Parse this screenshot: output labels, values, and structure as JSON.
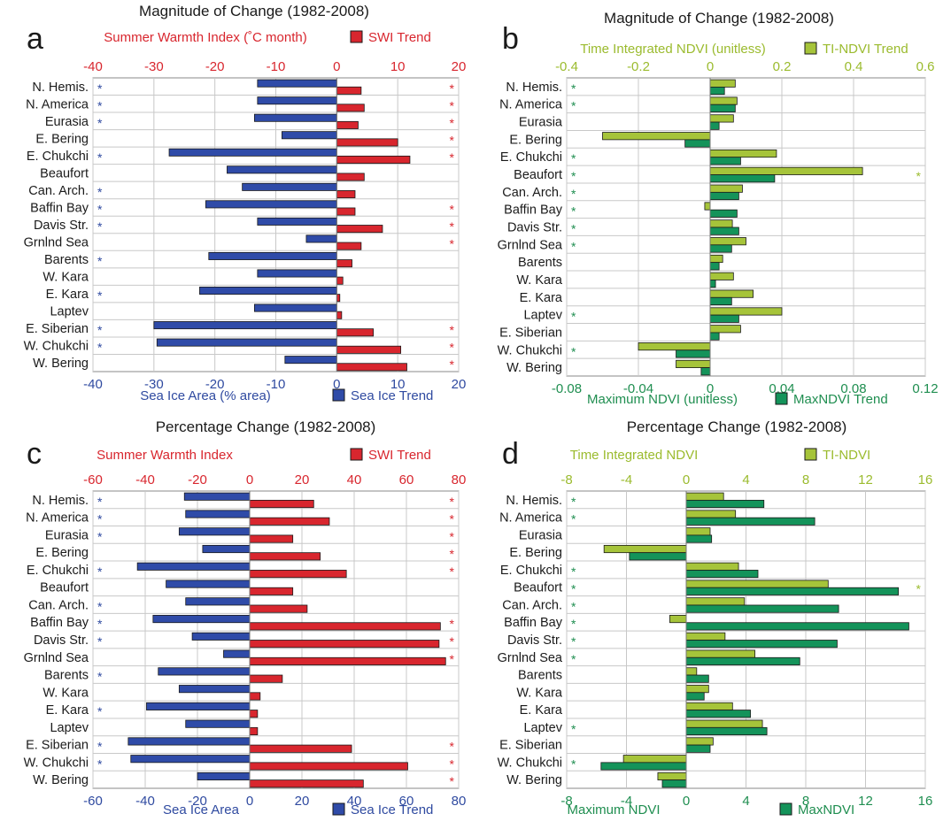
{
  "colors": {
    "ice_blue": "#2f4aa0",
    "ice_fill": "#2f4ba8",
    "swi_red": "#d8262e",
    "ndvi_light": "#a6c43a",
    "ndvi_light_text": "#9bbb2e",
    "ndvi_dark": "#14935a",
    "ndvi_dark_text": "#1f8e50",
    "grid": "#c8c8c8",
    "text": "#1a1a1a"
  },
  "charts": [
    {
      "id": "a",
      "panel_letter": "a",
      "title": "Magnitude of Change (1982-2008)",
      "categories": [
        "N. Hemis.",
        "N. America",
        "Eurasia",
        "E. Bering",
        "E. Chukchi",
        "Beaufort",
        "Can. Arch.",
        "Baffin Bay",
        "Davis Str.",
        "Grnlnd Sea",
        "Barents",
        "W. Kara",
        "E. Kara",
        "Laptev",
        "E. Siberian",
        "W. Chukchi",
        "W. Bering"
      ],
      "top_axis": {
        "label": "Summer Warmth Index (˚C month)",
        "ticks": [
          -40,
          -30,
          -20,
          -10,
          0,
          10,
          20
        ],
        "range": [
          -40,
          20
        ],
        "color": "swi_red"
      },
      "bottom_axis": {
        "label": "Sea Ice Area (% area)",
        "ticks": [
          -40,
          -30,
          -20,
          -10,
          0,
          10,
          20
        ],
        "range": [
          -40,
          20
        ],
        "color": "ice_blue"
      },
      "legend_top": {
        "label": "SWI Trend",
        "swatch": "swi_red",
        "text_color": "swi_red"
      },
      "legend_bottom": {
        "label": "Sea Ice Trend",
        "swatch": "ice_fill",
        "text_color": "ice_blue"
      },
      "series": [
        {
          "name": "Sea Ice Trend",
          "axis": "bottom",
          "slot": "upper",
          "color": "ice_fill",
          "values": [
            -13,
            -13,
            -13.5,
            -9,
            -27.5,
            -18,
            -15.5,
            -21.5,
            -13,
            -5,
            -21,
            -13,
            -22.5,
            -13.5,
            -30,
            -29.5,
            -8.5
          ]
        },
        {
          "name": "SWI Trend",
          "axis": "top",
          "slot": "lower",
          "color": "swi_red",
          "values": [
            4,
            4.5,
            3.5,
            10,
            12,
            4.5,
            3,
            3,
            7.5,
            4,
            2.5,
            1,
            0.5,
            0.8,
            6,
            10.5,
            11.5
          ]
        }
      ],
      "stars_left": [
        true,
        true,
        true,
        false,
        true,
        false,
        true,
        true,
        true,
        false,
        true,
        false,
        true,
        false,
        true,
        true,
        false
      ],
      "stars_left_color": "ice_blue",
      "stars_right": [
        true,
        true,
        true,
        true,
        true,
        false,
        false,
        true,
        true,
        true,
        false,
        false,
        false,
        false,
        true,
        true,
        true
      ],
      "stars_right_color": "swi_red",
      "star": "*"
    },
    {
      "id": "b",
      "panel_letter": "b",
      "title": "Magnitude of Change (1982-2008)",
      "categories": [
        "N. Hemis.",
        "N. America",
        "Eurasia",
        "E. Bering",
        "E. Chukchi",
        "Beaufort",
        "Can. Arch.",
        "Baffin Bay",
        "Davis Str.",
        "Grnlnd Sea",
        "Barents",
        "W. Kara",
        "E. Kara",
        "Laptev",
        "E. Siberian",
        "W. Chukchi",
        "W. Bering"
      ],
      "top_axis": {
        "label": "Time Integrated NDVI (unitless)",
        "ticks": [
          -0.4,
          -0.2,
          0,
          0.2,
          0.4,
          0.6
        ],
        "tick_labels": [
          "-0.4",
          "-0.2",
          "0",
          "0.2",
          "0.4",
          "0.6"
        ],
        "range": [
          -0.4,
          0.6
        ],
        "color": "ndvi_light_text"
      },
      "bottom_axis": {
        "label": "Maximum NDVI (unitless)",
        "ticks": [
          -0.08,
          -0.04,
          0,
          0.04,
          0.08,
          0.12
        ],
        "tick_labels": [
          "-0.08",
          "-0.04",
          "0",
          "0.04",
          "0.08",
          "0.12"
        ],
        "range": [
          -0.08,
          0.12
        ],
        "color": "ndvi_dark_text"
      },
      "legend_top": {
        "label": "TI-NDVI Trend",
        "swatch": "ndvi_light",
        "text_color": "ndvi_light_text"
      },
      "legend_bottom": {
        "label": "MaxNDVI Trend",
        "swatch": "ndvi_dark",
        "text_color": "ndvi_dark_text"
      },
      "series": [
        {
          "name": "TI-NDVI Trend",
          "axis": "top",
          "slot": "upper",
          "color": "ndvi_light",
          "values": [
            0.07,
            0.075,
            0.065,
            -0.3,
            0.185,
            0.425,
            0.09,
            -0.015,
            0.062,
            0.1,
            0.035,
            0.065,
            0.12,
            0.2,
            0.085,
            -0.2,
            -0.095
          ]
        },
        {
          "name": "MaxNDVI Trend",
          "axis": "bottom",
          "slot": "lower",
          "color": "ndvi_dark",
          "values": [
            0.008,
            0.014,
            0.005,
            -0.014,
            0.017,
            0.036,
            0.016,
            0.015,
            0.016,
            0.012,
            0.005,
            0.003,
            0.012,
            0.016,
            0.005,
            -0.019,
            -0.005
          ]
        }
      ],
      "stars_left": [
        true,
        true,
        false,
        false,
        true,
        true,
        true,
        true,
        true,
        true,
        false,
        false,
        false,
        true,
        false,
        true,
        false
      ],
      "stars_left_color": "ndvi_dark_text",
      "stars_right": [
        false,
        false,
        false,
        false,
        false,
        true,
        false,
        false,
        false,
        false,
        false,
        false,
        false,
        false,
        false,
        false,
        false
      ],
      "stars_right_color": "ndvi_light_text",
      "star": "*"
    },
    {
      "id": "c",
      "panel_letter": "c",
      "title": "Percentage Change (1982-2008)",
      "categories": [
        "N. Hemis.",
        "N. America",
        "Eurasia",
        "E. Bering",
        "E. Chukchi",
        "Beaufort",
        "Can. Arch.",
        "Baffin Bay",
        "Davis Str.",
        "Grnlnd Sea",
        "Barents",
        "W. Kara",
        "E. Kara",
        "Laptev",
        "E. Siberian",
        "W. Chukchi",
        "W. Bering"
      ],
      "top_axis": {
        "label": "Summer Warmth Index",
        "ticks": [
          -60,
          -40,
          -20,
          0,
          20,
          40,
          60,
          80
        ],
        "range": [
          -60,
          80
        ],
        "color": "swi_red"
      },
      "bottom_axis": {
        "label": "Sea Ice Area",
        "ticks": [
          -60,
          -40,
          -20,
          0,
          20,
          40,
          60,
          80
        ],
        "range": [
          -60,
          80
        ],
        "color": "ice_blue"
      },
      "legend_top": {
        "label": "SWI Trend",
        "swatch": "swi_red",
        "text_color": "swi_red"
      },
      "legend_bottom": {
        "label": "Sea Ice Trend",
        "swatch": "ice_fill",
        "text_color": "ice_blue"
      },
      "series": [
        {
          "name": "Sea Ice Trend",
          "axis": "bottom",
          "slot": "upper",
          "color": "ice_fill",
          "values": [
            -25,
            -24.5,
            -27,
            -18,
            -43,
            -32,
            -24.5,
            -37,
            -22,
            -10,
            -35,
            -27,
            -39.5,
            -24.5,
            -46.5,
            -45.5,
            -20
          ]
        },
        {
          "name": "SWI Trend",
          "axis": "top",
          "slot": "lower",
          "color": "swi_red",
          "values": [
            24.5,
            30.5,
            16.5,
            27,
            37,
            16.5,
            22,
            73,
            72.5,
            75,
            12.5,
            4,
            3,
            3,
            39,
            60.5,
            43.5
          ]
        }
      ],
      "stars_left": [
        true,
        true,
        true,
        false,
        true,
        false,
        true,
        true,
        true,
        false,
        true,
        false,
        true,
        false,
        true,
        true,
        false
      ],
      "stars_left_color": "ice_blue",
      "stars_right": [
        true,
        true,
        true,
        true,
        true,
        false,
        false,
        true,
        true,
        true,
        false,
        false,
        false,
        false,
        true,
        true,
        true
      ],
      "stars_right_color": "swi_red",
      "star": "*"
    },
    {
      "id": "d",
      "panel_letter": "d",
      "title": "Percentage Change (1982-2008)",
      "categories": [
        "N. Hemis.",
        "N. America",
        "Eurasia",
        "E. Bering",
        "E. Chukchi",
        "Beaufort",
        "Can. Arch.",
        "Baffin Bay",
        "Davis Str.",
        "Grnlnd Sea",
        "Barents",
        "W. Kara",
        "E. Kara",
        "Laptev",
        "E. Siberian",
        "W. Chukchi",
        "W. Bering"
      ],
      "top_axis": {
        "label": "Time Integrated NDVI",
        "ticks": [
          -8,
          -4,
          0,
          4,
          8,
          12,
          16
        ],
        "range": [
          -8,
          16
        ],
        "color": "ndvi_light_text"
      },
      "bottom_axis": {
        "label": "Maximum NDVI",
        "ticks": [
          -8,
          -4,
          0,
          4,
          8,
          12,
          16
        ],
        "range": [
          -8,
          16
        ],
        "color": "ndvi_dark_text"
      },
      "legend_top": {
        "label": "TI-NDVI",
        "swatch": "ndvi_light",
        "text_color": "ndvi_light_text"
      },
      "legend_bottom": {
        "label": "MaxNDVI",
        "swatch": "ndvi_dark",
        "text_color": "ndvi_dark_text"
      },
      "series": [
        {
          "name": "TI-NDVI",
          "axis": "top",
          "slot": "upper",
          "color": "ndvi_light",
          "values": [
            2.5,
            3.3,
            1.6,
            -5.5,
            3.5,
            9.5,
            3.9,
            -1.1,
            2.6,
            4.6,
            0.7,
            1.5,
            3.1,
            5.1,
            1.8,
            -4.2,
            -1.9
          ]
        },
        {
          "name": "MaxNDVI",
          "axis": "bottom",
          "slot": "lower",
          "color": "ndvi_dark",
          "values": [
            5.2,
            8.6,
            1.7,
            -3.8,
            4.8,
            14.2,
            10.2,
            14.9,
            10.1,
            7.6,
            1.5,
            1.2,
            4.3,
            5.4,
            1.6,
            -5.7,
            -1.6
          ]
        }
      ],
      "stars_left": [
        true,
        true,
        false,
        false,
        true,
        true,
        true,
        true,
        true,
        true,
        false,
        false,
        false,
        true,
        false,
        true,
        false
      ],
      "stars_left_color": "ndvi_dark_text",
      "stars_right": [
        false,
        false,
        false,
        false,
        false,
        true,
        false,
        false,
        false,
        false,
        false,
        false,
        false,
        false,
        false,
        false,
        false
      ],
      "stars_right_color": "ndvi_light_text",
      "star": "*"
    }
  ],
  "chart_data": [
    {
      "type": "bar",
      "title": "Magnitude of Change (1982-2008)",
      "panel": "a",
      "categories": [
        "N. Hemis.",
        "N. America",
        "Eurasia",
        "E. Bering",
        "E. Chukchi",
        "Beaufort",
        "Can. Arch.",
        "Baffin Bay",
        "Davis Str.",
        "Grnlnd Sea",
        "Barents",
        "W. Kara",
        "E. Kara",
        "Laptev",
        "E. Siberian",
        "W. Chukchi",
        "W. Bering"
      ],
      "series": [
        {
          "name": "Sea Ice Trend",
          "values": [
            -13,
            -13,
            -13.5,
            -9,
            -27.5,
            -18,
            -15.5,
            -21.5,
            -13,
            -5,
            -21,
            -13,
            -22.5,
            -13.5,
            -30,
            -29.5,
            -8.5
          ]
        },
        {
          "name": "SWI Trend",
          "values": [
            4,
            4.5,
            3.5,
            10,
            12,
            4.5,
            3,
            3,
            7.5,
            4,
            2.5,
            1,
            0.5,
            0.8,
            6,
            10.5,
            11.5
          ]
        }
      ],
      "xlabel": "Sea Ice Area (% area)",
      "x2label": "Summer Warmth Index (˚C month)",
      "xlim": [
        -40,
        20
      ]
    },
    {
      "type": "bar",
      "title": "Magnitude of Change (1982-2008)",
      "panel": "b",
      "categories": [
        "N. Hemis.",
        "N. America",
        "Eurasia",
        "E. Bering",
        "E. Chukchi",
        "Beaufort",
        "Can. Arch.",
        "Baffin Bay",
        "Davis Str.",
        "Grnlnd Sea",
        "Barents",
        "W. Kara",
        "E. Kara",
        "Laptev",
        "E. Siberian",
        "W. Chukchi",
        "W. Bering"
      ],
      "series": [
        {
          "name": "TI-NDVI Trend",
          "values": [
            0.07,
            0.075,
            0.065,
            -0.3,
            0.185,
            0.425,
            0.09,
            -0.015,
            0.062,
            0.1,
            0.035,
            0.065,
            0.12,
            0.2,
            0.085,
            -0.2,
            -0.095
          ]
        },
        {
          "name": "MaxNDVI Trend",
          "values": [
            0.008,
            0.014,
            0.005,
            -0.014,
            0.017,
            0.036,
            0.016,
            0.015,
            0.016,
            0.012,
            0.005,
            0.003,
            0.012,
            0.016,
            0.005,
            -0.019,
            -0.005
          ]
        }
      ],
      "xlabel": "Maximum NDVI (unitless)",
      "x2label": "Time Integrated NDVI (unitless)",
      "xlim": [
        -0.08,
        0.12
      ],
      "x2lim": [
        -0.4,
        0.6
      ]
    },
    {
      "type": "bar",
      "title": "Percentage Change (1982-2008)",
      "panel": "c",
      "categories": [
        "N. Hemis.",
        "N. America",
        "Eurasia",
        "E. Bering",
        "E. Chukchi",
        "Beaufort",
        "Can. Arch.",
        "Baffin Bay",
        "Davis Str.",
        "Grnlnd Sea",
        "Barents",
        "W. Kara",
        "E. Kara",
        "Laptev",
        "E. Siberian",
        "W. Chukchi",
        "W. Bering"
      ],
      "series": [
        {
          "name": "Sea Ice Trend",
          "values": [
            -25,
            -24.5,
            -27,
            -18,
            -43,
            -32,
            -24.5,
            -37,
            -22,
            -10,
            -35,
            -27,
            -39.5,
            -24.5,
            -46.5,
            -45.5,
            -20
          ]
        },
        {
          "name": "SWI Trend",
          "values": [
            24.5,
            30.5,
            16.5,
            27,
            37,
            16.5,
            22,
            73,
            72.5,
            75,
            12.5,
            4,
            3,
            3,
            39,
            60.5,
            43.5
          ]
        }
      ],
      "xlabel": "Sea Ice Area",
      "x2label": "Summer Warmth Index",
      "xlim": [
        -60,
        80
      ]
    },
    {
      "type": "bar",
      "title": "Percentage Change (1982-2008)",
      "panel": "d",
      "categories": [
        "N. Hemis.",
        "N. America",
        "Eurasia",
        "E. Bering",
        "E. Chukchi",
        "Beaufort",
        "Can. Arch.",
        "Baffin Bay",
        "Davis Str.",
        "Grnlnd Sea",
        "Barents",
        "W. Kara",
        "E. Kara",
        "Laptev",
        "E. Siberian",
        "W. Chukchi",
        "W. Bering"
      ],
      "series": [
        {
          "name": "TI-NDVI",
          "values": [
            2.5,
            3.3,
            1.6,
            -5.5,
            3.5,
            9.5,
            3.9,
            -1.1,
            2.6,
            4.6,
            0.7,
            1.5,
            3.1,
            5.1,
            1.8,
            -4.2,
            -1.9
          ]
        },
        {
          "name": "MaxNDVI",
          "values": [
            5.2,
            8.6,
            1.7,
            -3.8,
            4.8,
            14.2,
            10.2,
            14.9,
            10.1,
            7.6,
            1.5,
            1.2,
            4.3,
            5.4,
            1.6,
            -5.7,
            -1.6
          ]
        }
      ],
      "xlabel": "Maximum NDVI",
      "x2label": "Time Integrated NDVI",
      "xlim": [
        -8,
        16
      ]
    }
  ]
}
